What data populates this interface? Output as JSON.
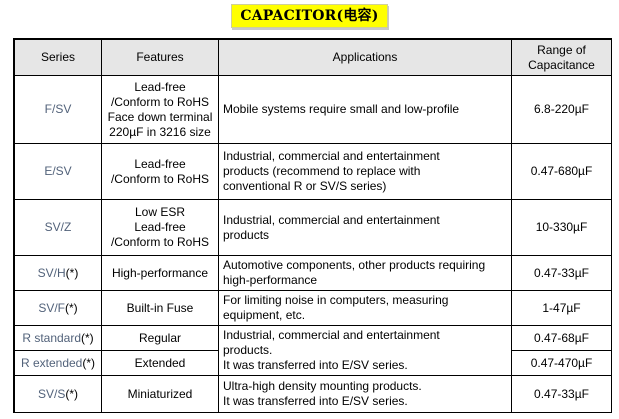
{
  "title": "CAPACITOR(电容)",
  "table": {
    "headers": {
      "series": "Series",
      "features": "Features",
      "applications": "Applications",
      "range_line1": "Range of",
      "range_line2": "Capacitance"
    },
    "rows": [
      {
        "series": "F/SV",
        "series_mark": "",
        "features": [
          "Lead-free",
          "/Conform to RoHS",
          "Face down terminal",
          "220µF in 3216 size"
        ],
        "applications": [
          "Mobile systems require small and low-profile"
        ],
        "range": "6.8-220µF"
      },
      {
        "series": "E/SV",
        "series_mark": "",
        "features": [
          "Lead-free",
          "/Conform to RoHS"
        ],
        "applications": [
          "Industrial, commercial and entertainment",
          "products (recommend to replace with",
          "conventional R or SV/S series)"
        ],
        "range": "0.47-680µF"
      },
      {
        "series": "SV/Z",
        "series_mark": "",
        "features": [
          "Low ESR",
          "Lead-free",
          "/Conform to RoHS"
        ],
        "applications": [
          "Industrial, commercial and entertainment",
          "products"
        ],
        "range": "10-330µF"
      },
      {
        "series": "SV/H",
        "series_mark": "(*)",
        "features": [
          "High-performance"
        ],
        "applications": [
          "Automotive components, other products requiring",
          "high-performance"
        ],
        "range": "0.47-33µF"
      },
      {
        "series": "SV/F",
        "series_mark": "(*)",
        "features": [
          "Built-in Fuse"
        ],
        "applications": [
          "For limiting noise in computers, measuring",
          "equipment, etc."
        ],
        "range": "1-47µF"
      },
      {
        "series": "R standard",
        "series_mark": "(*)",
        "features": [
          "Regular"
        ],
        "range": "0.47-68µF"
      },
      {
        "series": "R extended",
        "series_mark": "(*)",
        "features": [
          "Extended"
        ],
        "range": "0.47-470µF"
      },
      {
        "series": "SV/S",
        "series_mark": "(*)",
        "features": [
          "Miniaturized"
        ],
        "applications": [
          "Ultra-high density mounting products.",
          "It was transferred into E/SV series."
        ],
        "range": "0.47-33µF"
      }
    ],
    "r_series_applications": [
      "Industrial, commercial and entertainment",
      "products.",
      "It was transferred into E/SV series."
    ]
  }
}
